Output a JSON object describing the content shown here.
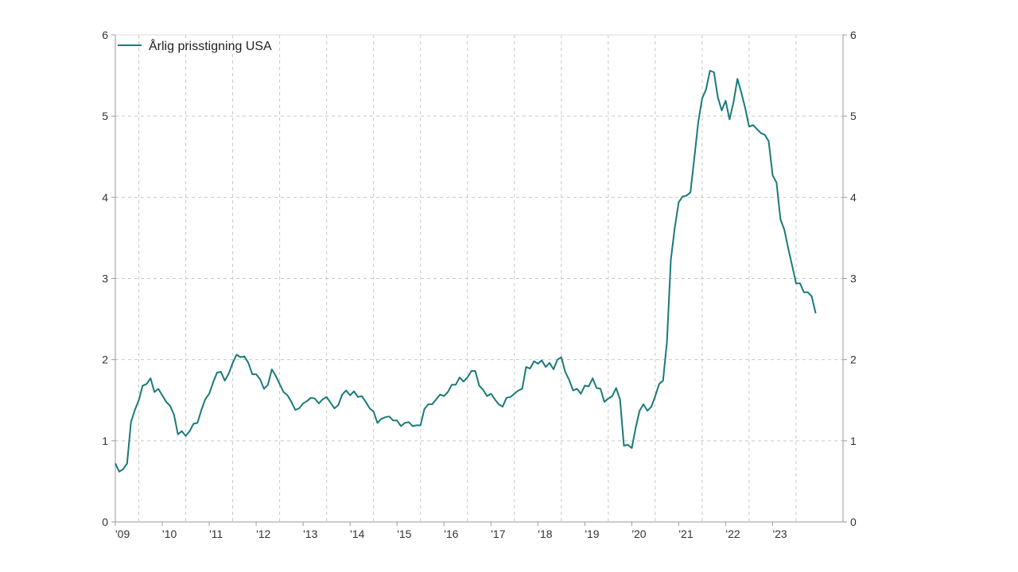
{
  "chart_data": {
    "type": "line",
    "title": "",
    "xlabel": "",
    "ylabel": "",
    "ylim": [
      0,
      6
    ],
    "y_ticks": [
      "0",
      "1",
      "2",
      "3",
      "4",
      "5",
      "6"
    ],
    "y_axes": "left-and-right",
    "grid": true,
    "legend": "top-left",
    "colors": {
      "line": "#1a7a7a",
      "grid": "#c8c8c8",
      "axis": "#9a9a9a"
    },
    "x_tick_labels": [
      "'09",
      "'10",
      "'11",
      "'12",
      "'13",
      "'14",
      "'15",
      "'16",
      "'17",
      "'18",
      "'19",
      "'20",
      "'21",
      "'22",
      "'23"
    ],
    "x_tick_years": [
      2009,
      2010,
      2011,
      2012,
      2013,
      2014,
      2015,
      2016,
      2017,
      2018,
      2019,
      2020,
      2021,
      2022,
      2023
    ],
    "series": [
      {
        "name": "Årlig prisstigning USA",
        "x": [
          "2009-01",
          "2009-02",
          "2009-03",
          "2009-04",
          "2009-05",
          "2009-06",
          "2009-07",
          "2009-08",
          "2009-09",
          "2009-10",
          "2009-11",
          "2009-12",
          "2010-01",
          "2010-02",
          "2010-03",
          "2010-04",
          "2010-05",
          "2010-06",
          "2010-07",
          "2010-08",
          "2010-09",
          "2010-10",
          "2010-11",
          "2010-12",
          "2011-01",
          "2011-02",
          "2011-03",
          "2011-04",
          "2011-05",
          "2011-06",
          "2011-07",
          "2011-08",
          "2011-09",
          "2011-10",
          "2011-11",
          "2011-12",
          "2012-01",
          "2012-02",
          "2012-03",
          "2012-04",
          "2012-05",
          "2012-06",
          "2012-07",
          "2012-08",
          "2012-09",
          "2012-10",
          "2012-11",
          "2012-12",
          "2013-01",
          "2013-02",
          "2013-03",
          "2013-04",
          "2013-05",
          "2013-06",
          "2013-07",
          "2013-08",
          "2013-09",
          "2013-10",
          "2013-11",
          "2013-12",
          "2014-01",
          "2014-02",
          "2014-03",
          "2014-04",
          "2014-05",
          "2014-06",
          "2014-07",
          "2014-08",
          "2014-09",
          "2014-10",
          "2014-11",
          "2014-12",
          "2015-01",
          "2015-02",
          "2015-03",
          "2015-04",
          "2015-05",
          "2015-06",
          "2015-07",
          "2015-08",
          "2015-09",
          "2015-10",
          "2015-11",
          "2015-12",
          "2016-01",
          "2016-02",
          "2016-03",
          "2016-04",
          "2016-05",
          "2016-06",
          "2016-07",
          "2016-08",
          "2016-09",
          "2016-10",
          "2016-11",
          "2016-12",
          "2017-01",
          "2017-02",
          "2017-03",
          "2017-04",
          "2017-05",
          "2017-06",
          "2017-07",
          "2017-08",
          "2017-09",
          "2017-10",
          "2017-11",
          "2017-12",
          "2018-01",
          "2018-02",
          "2018-03",
          "2018-04",
          "2018-05",
          "2018-06",
          "2018-07",
          "2018-08",
          "2018-09",
          "2018-10",
          "2018-11",
          "2018-12",
          "2019-01",
          "2019-02",
          "2019-03",
          "2019-04",
          "2019-05",
          "2019-06",
          "2019-07",
          "2019-08",
          "2019-09",
          "2019-10",
          "2019-11",
          "2019-12",
          "2020-01",
          "2020-02",
          "2020-03",
          "2020-04",
          "2020-05",
          "2020-06",
          "2020-07",
          "2020-08",
          "2020-09",
          "2020-10",
          "2020-11",
          "2020-12",
          "2021-01",
          "2021-02",
          "2021-03",
          "2021-04",
          "2021-05",
          "2021-06",
          "2021-07",
          "2021-08",
          "2021-09",
          "2021-10",
          "2021-11",
          "2021-12",
          "2022-01",
          "2022-02",
          "2022-03",
          "2022-04",
          "2022-05",
          "2022-06",
          "2022-07",
          "2022-08",
          "2022-09",
          "2022-10",
          "2022-11",
          "2022-12",
          "2023-01",
          "2023-02",
          "2023-03",
          "2023-04",
          "2023-05",
          "2023-06",
          "2023-07",
          "2023-08",
          "2023-09",
          "2023-10",
          "2023-11",
          "2023-12"
        ],
        "values": [
          0.72,
          0.62,
          0.65,
          0.72,
          1.23,
          1.38,
          1.5,
          1.68,
          1.7,
          1.77,
          1.6,
          1.64,
          1.56,
          1.48,
          1.43,
          1.32,
          1.08,
          1.12,
          1.06,
          1.12,
          1.21,
          1.22,
          1.38,
          1.51,
          1.58,
          1.72,
          1.84,
          1.85,
          1.74,
          1.83,
          1.96,
          2.06,
          2.03,
          2.04,
          1.96,
          1.82,
          1.82,
          1.76,
          1.64,
          1.69,
          1.88,
          1.8,
          1.7,
          1.6,
          1.56,
          1.48,
          1.38,
          1.4,
          1.46,
          1.49,
          1.53,
          1.52,
          1.46,
          1.51,
          1.54,
          1.47,
          1.4,
          1.44,
          1.57,
          1.62,
          1.56,
          1.61,
          1.54,
          1.55,
          1.48,
          1.4,
          1.36,
          1.22,
          1.27,
          1.29,
          1.3,
          1.25,
          1.25,
          1.18,
          1.22,
          1.23,
          1.18,
          1.19,
          1.19,
          1.39,
          1.45,
          1.45,
          1.51,
          1.57,
          1.55,
          1.6,
          1.69,
          1.69,
          1.78,
          1.73,
          1.78,
          1.86,
          1.86,
          1.68,
          1.63,
          1.55,
          1.58,
          1.51,
          1.45,
          1.42,
          1.53,
          1.54,
          1.58,
          1.62,
          1.64,
          1.91,
          1.89,
          1.98,
          1.95,
          1.99,
          1.91,
          1.96,
          1.88,
          2.0,
          2.03,
          1.85,
          1.75,
          1.62,
          1.64,
          1.58,
          1.68,
          1.67,
          1.77,
          1.65,
          1.64,
          1.48,
          1.52,
          1.55,
          1.65,
          1.51,
          0.94,
          0.95,
          0.91,
          1.16,
          1.37,
          1.45,
          1.37,
          1.42,
          1.55,
          1.7,
          1.74,
          2.22,
          3.23,
          3.63,
          3.94,
          4.01,
          4.02,
          4.06,
          4.49,
          4.93,
          5.22,
          5.33,
          5.56,
          5.54,
          5.23,
          5.07,
          5.19,
          4.96,
          5.17,
          5.46,
          5.29,
          5.1,
          4.87,
          4.89,
          4.84,
          4.79,
          4.77,
          4.69,
          4.27,
          4.18,
          3.73,
          3.6,
          3.37,
          3.16,
          2.94,
          2.94,
          2.83,
          2.83,
          2.78,
          2.57
        ]
      }
    ]
  }
}
